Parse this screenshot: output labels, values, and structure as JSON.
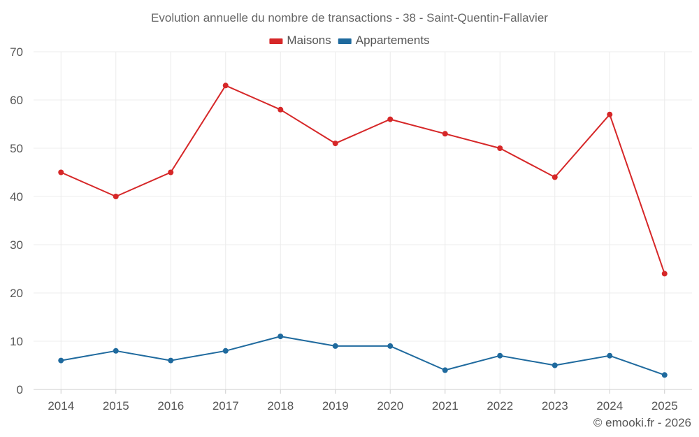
{
  "chart_data": {
    "type": "line",
    "title": "Evolution annuelle du nombre de transactions - 38 - Saint-Quentin-Fallavier",
    "categories": [
      "2014",
      "2015",
      "2016",
      "2017",
      "2018",
      "2019",
      "2020",
      "2021",
      "2022",
      "2023",
      "2024",
      "2025"
    ],
    "series": [
      {
        "name": "Maisons",
        "color": "#d62728",
        "values": [
          45,
          40,
          45,
          63,
          58,
          51,
          56,
          53,
          50,
          44,
          57,
          24
        ]
      },
      {
        "name": "Appartements",
        "color": "#1f6a9e",
        "values": [
          6,
          8,
          6,
          8,
          11,
          9,
          9,
          4,
          7,
          5,
          7,
          3
        ]
      }
    ],
    "ylim": [
      0,
      70
    ],
    "yticks": [
      0,
      10,
      20,
      30,
      40,
      50,
      60,
      70
    ],
    "grid": true,
    "legend": "top-center",
    "xlabel": "",
    "ylabel": ""
  },
  "credit": "© emooki.fr - 2026"
}
